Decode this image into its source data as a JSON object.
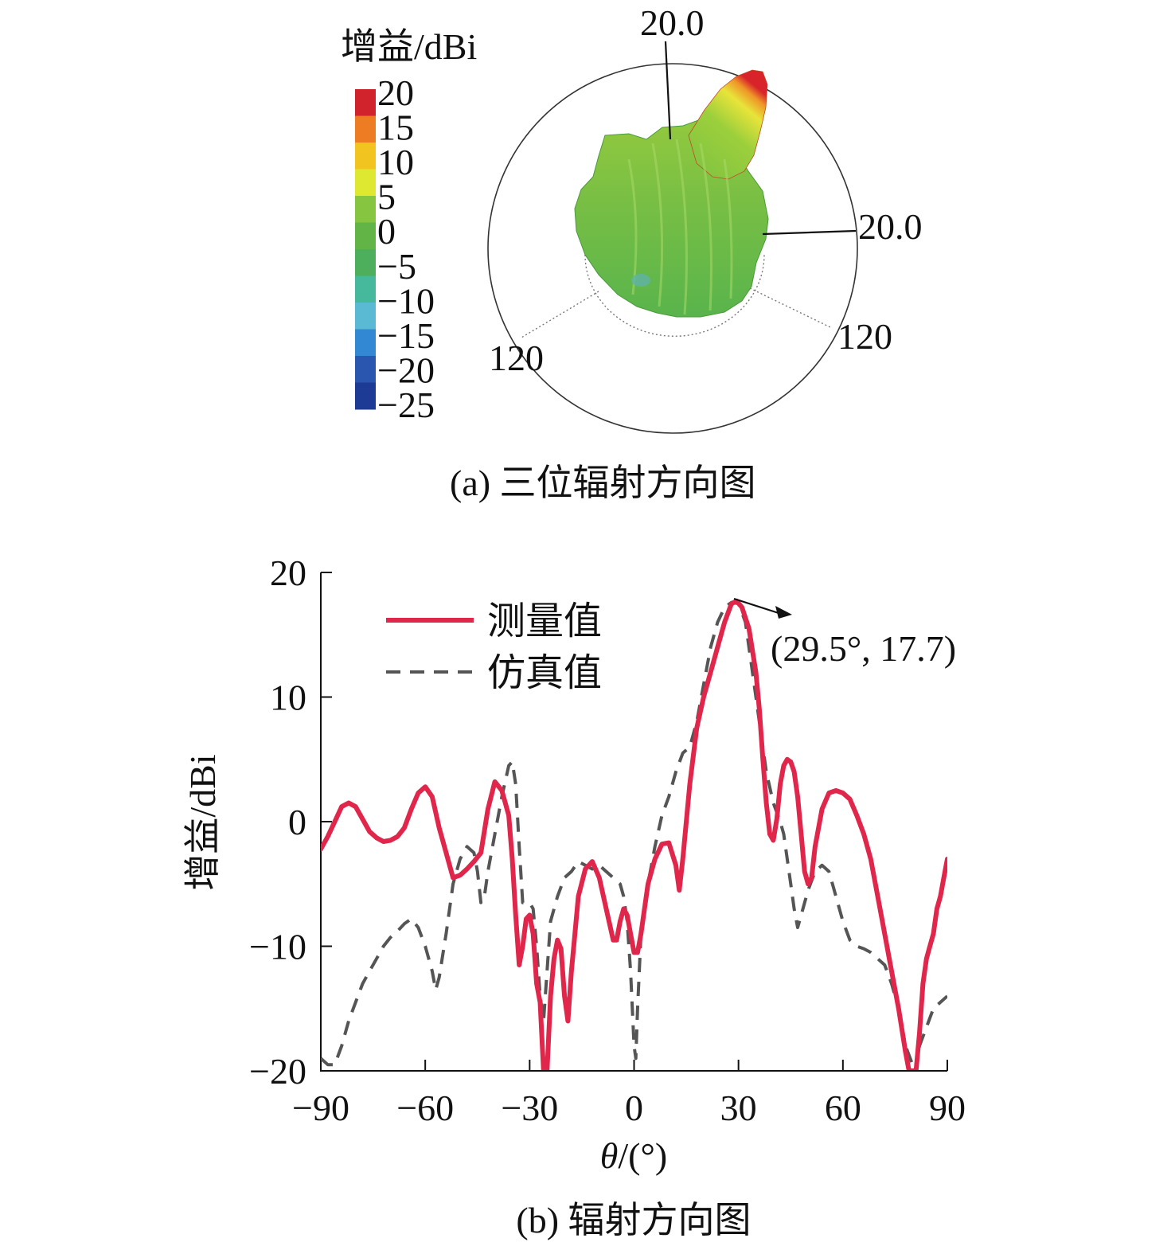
{
  "chart_data": [
    {
      "type": "other",
      "panel": "a",
      "caption": "(a) 三位辐射方向图",
      "colorbar": {
        "title": "增益/dBi",
        "ticks": [
          "20",
          "15",
          "10",
          "5",
          "0",
          "−5",
          "−10",
          "−15",
          "−20",
          "−25"
        ],
        "colors": [
          "#d0232b",
          "#ee7c22",
          "#f2c420",
          "#dfe830",
          "#86c540",
          "#63b446",
          "#4dae5c",
          "#46b89c",
          "#5bbad3",
          "#3388d4",
          "#2a56b0",
          "#1d3a94"
        ]
      },
      "polar_labels": {
        "top": "20.0",
        "right": "20.0",
        "lower_left": "120",
        "lower_right": "120"
      }
    },
    {
      "type": "line",
      "panel": "b",
      "caption": "(b) 辐射方向图",
      "xlabel": "θ/(°)",
      "ylabel": "增益/dBi",
      "xlim": [
        -90,
        90
      ],
      "ylim": [
        -20,
        20
      ],
      "xticks": [
        -90,
        -60,
        -30,
        0,
        30,
        60,
        90
      ],
      "xtick_labels": [
        "−90",
        "−60",
        "−30",
        "0",
        "30",
        "60",
        "90"
      ],
      "yticks": [
        20,
        10,
        0,
        -10,
        -20
      ],
      "ytick_labels": [
        "20",
        "10",
        "0",
        "−10",
        "−20"
      ],
      "legend_position": "top-left",
      "annotation": {
        "text": "(29.5°, 17.7)",
        "x": 29.5,
        "y": 17.7
      },
      "series": [
        {
          "name": "测量值",
          "color": "#e0264b",
          "style": "solid",
          "points": [
            [
              -90,
              -2.2
            ],
            [
              -88,
              -1.2
            ],
            [
              -86,
              0
            ],
            [
              -84,
              1.2
            ],
            [
              -82,
              1.5
            ],
            [
              -80,
              1.2
            ],
            [
              -78,
              0.2
            ],
            [
              -76,
              -0.8
            ],
            [
              -74,
              -1.3
            ],
            [
              -72,
              -1.6
            ],
            [
              -70,
              -1.5
            ],
            [
              -68,
              -1.2
            ],
            [
              -66,
              -0.5
            ],
            [
              -64,
              1
            ],
            [
              -62,
              2.3
            ],
            [
              -60,
              2.8
            ],
            [
              -58,
              2
            ],
            [
              -56,
              -0.5
            ],
            [
              -54,
              -2.5
            ],
            [
              -52,
              -4.5
            ],
            [
              -50,
              -4.3
            ],
            [
              -48,
              -3.8
            ],
            [
              -46,
              -3.2
            ],
            [
              -44,
              -2.5
            ],
            [
              -42,
              1
            ],
            [
              -40,
              3.2
            ],
            [
              -38,
              2.5
            ],
            [
              -36,
              0.5
            ],
            [
              -35,
              -3
            ],
            [
              -34,
              -7.5
            ],
            [
              -33,
              -11.5
            ],
            [
              -32,
              -10
            ],
            [
              -31,
              -7.8
            ],
            [
              -30,
              -7.5
            ],
            [
              -29,
              -9
            ],
            [
              -28,
              -13
            ],
            [
              -27,
              -14.5
            ],
            [
              -26,
              -20
            ],
            [
              -25,
              -20
            ],
            [
              -24,
              -14
            ],
            [
              -23,
              -11
            ],
            [
              -22,
              -9.5
            ],
            [
              -21,
              -10.2
            ],
            [
              -20,
              -14
            ],
            [
              -19,
              -16
            ],
            [
              -18,
              -12
            ],
            [
              -17,
              -9
            ],
            [
              -16,
              -6
            ],
            [
              -14,
              -3.8
            ],
            [
              -12,
              -3.2
            ],
            [
              -10,
              -4.5
            ],
            [
              -8,
              -7
            ],
            [
              -6,
              -9.5
            ],
            [
              -5,
              -9.5
            ],
            [
              -4,
              -8
            ],
            [
              -3,
              -7
            ],
            [
              -2,
              -7.5
            ],
            [
              -1,
              -9
            ],
            [
              0,
              -10.5
            ],
            [
              1,
              -10.5
            ],
            [
              2,
              -9
            ],
            [
              3,
              -7
            ],
            [
              4,
              -5
            ],
            [
              6,
              -3
            ],
            [
              8,
              -1.8
            ],
            [
              10,
              -1.7
            ],
            [
              12,
              -3.5
            ],
            [
              13,
              -5.5
            ],
            [
              14,
              -3
            ],
            [
              16,
              3
            ],
            [
              18,
              7.5
            ],
            [
              20,
              10
            ],
            [
              22,
              12
            ],
            [
              24,
              14
            ],
            [
              26,
              16
            ],
            [
              28,
              17.5
            ],
            [
              29.5,
              17.7
            ],
            [
              31,
              17.2
            ],
            [
              33,
              15.5
            ],
            [
              35,
              12
            ],
            [
              36,
              9
            ],
            [
              37,
              5
            ],
            [
              38,
              1.5
            ],
            [
              39,
              -1
            ],
            [
              40,
              -1.5
            ],
            [
              41,
              0.2
            ],
            [
              42,
              3
            ],
            [
              43,
              4.5
            ],
            [
              44,
              5
            ],
            [
              45,
              4.8
            ],
            [
              46,
              4
            ],
            [
              47,
              2
            ],
            [
              48,
              -1
            ],
            [
              49,
              -4
            ],
            [
              50,
              -5
            ],
            [
              51,
              -4.5
            ],
            [
              52,
              -2
            ],
            [
              54,
              1
            ],
            [
              56,
              2.3
            ],
            [
              58,
              2.5
            ],
            [
              60,
              2.3
            ],
            [
              62,
              1.8
            ],
            [
              64,
              0.5
            ],
            [
              66,
              -1
            ],
            [
              68,
              -3
            ],
            [
              70,
              -6
            ],
            [
              72,
              -9
            ],
            [
              74,
              -12
            ],
            [
              76,
              -15
            ],
            [
              78,
              -18.5
            ],
            [
              79,
              -20
            ],
            [
              80,
              -20
            ],
            [
              81,
              -20
            ],
            [
              82,
              -17
            ],
            [
              83,
              -13
            ],
            [
              84,
              -11
            ],
            [
              85,
              -10
            ],
            [
              86,
              -9
            ],
            [
              87,
              -7
            ],
            [
              88,
              -6
            ],
            [
              89,
              -4.5
            ],
            [
              90,
              -3
            ]
          ]
        },
        {
          "name": "仿真值",
          "color": "#555555",
          "style": "dashed",
          "points": [
            [
              -90,
              -19
            ],
            [
              -88,
              -19.5
            ],
            [
              -86,
              -19.5
            ],
            [
              -84,
              -18
            ],
            [
              -82,
              -16
            ],
            [
              -80,
              -14.5
            ],
            [
              -78,
              -13
            ],
            [
              -76,
              -12
            ],
            [
              -74,
              -11
            ],
            [
              -72,
              -10
            ],
            [
              -70,
              -9.3
            ],
            [
              -68,
              -8.8
            ],
            [
              -66,
              -8.2
            ],
            [
              -64,
              -7.8
            ],
            [
              -62,
              -8.5
            ],
            [
              -60,
              -10
            ],
            [
              -58,
              -12
            ],
            [
              -57,
              -13.5
            ],
            [
              -56,
              -12.5
            ],
            [
              -54,
              -9
            ],
            [
              -52,
              -5
            ],
            [
              -50,
              -3
            ],
            [
              -48,
              -2
            ],
            [
              -46,
              -2.5
            ],
            [
              -45,
              -4
            ],
            [
              -44,
              -6.5
            ],
            [
              -43,
              -6
            ],
            [
              -42,
              -4
            ],
            [
              -40,
              -1
            ],
            [
              -38,
              2
            ],
            [
              -36,
              4.5
            ],
            [
              -35,
              4.8
            ],
            [
              -34,
              3
            ],
            [
              -33,
              -2
            ],
            [
              -32,
              -6.5
            ],
            [
              -31,
              -6.5
            ],
            [
              -30,
              -6.5
            ],
            [
              -29,
              -7
            ],
            [
              -28,
              -10
            ],
            [
              -27,
              -14
            ],
            [
              -26,
              -16
            ],
            [
              -25,
              -12
            ],
            [
              -24,
              -8
            ],
            [
              -22,
              -6
            ],
            [
              -20,
              -4.5
            ],
            [
              -18,
              -4
            ],
            [
              -16,
              -3.2
            ],
            [
              -14,
              -3.5
            ],
            [
              -12,
              -3.8
            ],
            [
              -10,
              -3.5
            ],
            [
              -8,
              -4
            ],
            [
              -6,
              -4.5
            ],
            [
              -4,
              -5
            ],
            [
              -3,
              -6
            ],
            [
              -2,
              -8
            ],
            [
              -1,
              -12
            ],
            [
              0,
              -18
            ],
            [
              0.5,
              -19
            ],
            [
              1,
              -15
            ],
            [
              2,
              -9
            ],
            [
              4,
              -5
            ],
            [
              6,
              -2
            ],
            [
              8,
              0.5
            ],
            [
              10,
              2
            ],
            [
              12,
              4
            ],
            [
              14,
              5.5
            ],
            [
              16,
              6
            ],
            [
              18,
              8
            ],
            [
              20,
              11
            ],
            [
              22,
              14
            ],
            [
              24,
              16
            ],
            [
              26,
              17.2
            ],
            [
              28,
              17.6
            ],
            [
              30,
              17.5
            ],
            [
              32,
              16
            ],
            [
              34,
              12
            ],
            [
              36,
              8
            ],
            [
              38,
              4
            ],
            [
              40,
              1.5
            ],
            [
              42,
              0
            ],
            [
              43,
              -1
            ],
            [
              44,
              -3
            ],
            [
              45,
              -5
            ],
            [
              46,
              -7
            ],
            [
              47,
              -8.5
            ],
            [
              48,
              -7.5
            ],
            [
              50,
              -5.5
            ],
            [
              52,
              -4
            ],
            [
              54,
              -3.5
            ],
            [
              56,
              -4
            ],
            [
              58,
              -6
            ],
            [
              60,
              -8
            ],
            [
              62,
              -9.5
            ],
            [
              64,
              -10
            ],
            [
              66,
              -10.2
            ],
            [
              68,
              -10.5
            ],
            [
              70,
              -11
            ],
            [
              72,
              -11.5
            ],
            [
              74,
              -13
            ],
            [
              76,
              -15
            ],
            [
              78,
              -18
            ],
            [
              80,
              -19.5
            ],
            [
              81,
              -20
            ],
            [
              82,
              -18
            ],
            [
              84,
              -16.5
            ],
            [
              86,
              -15
            ],
            [
              88,
              -14.5
            ],
            [
              90,
              -14
            ]
          ]
        }
      ]
    }
  ]
}
